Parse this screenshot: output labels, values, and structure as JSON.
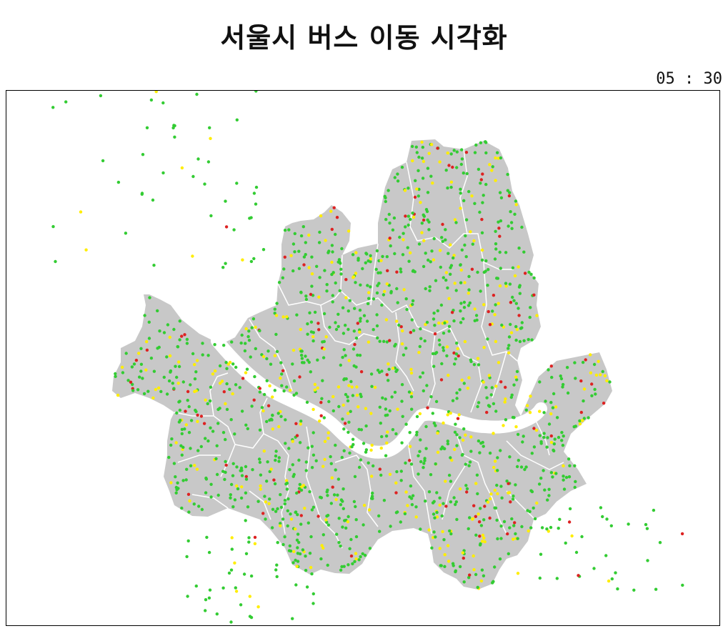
{
  "title": "서울시 버스 이동 시각화",
  "clock": "05 : 30",
  "colors": {
    "land": "#c8c8c8",
    "district_border": "#ffffff",
    "river": "#ffffff",
    "bus_green": "#33cc33",
    "bus_yellow": "#ffee00",
    "bus_red": "#dd2222"
  }
}
